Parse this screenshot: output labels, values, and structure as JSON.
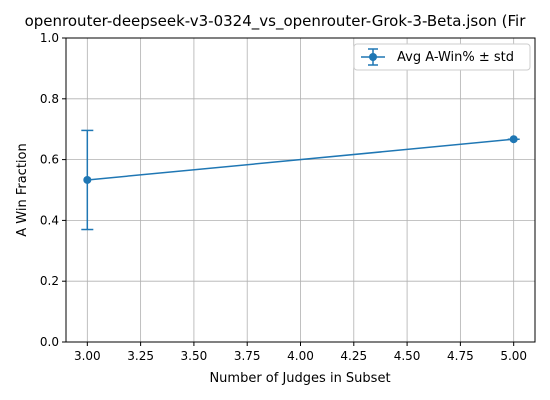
{
  "chart_data": {
    "type": "line",
    "title": "openrouter-deepseek-v3-0324_vs_openrouter-Grok-3-Beta.json (Fir",
    "xlabel": "Number of Judges in Subset",
    "ylabel": "A Win Fraction",
    "xlim": [
      2.9,
      5.1
    ],
    "ylim": [
      0.0,
      1.0
    ],
    "x_ticks": [
      3.0,
      3.25,
      3.5,
      3.75,
      4.0,
      4.25,
      4.5,
      4.75,
      5.0
    ],
    "x_tick_labels": [
      "3.00",
      "3.25",
      "3.50",
      "3.75",
      "4.00",
      "4.25",
      "4.50",
      "4.75",
      "5.00"
    ],
    "y_ticks": [
      0.0,
      0.2,
      0.4,
      0.6,
      0.8,
      1.0
    ],
    "y_tick_labels": [
      "0.0",
      "0.2",
      "0.4",
      "0.6",
      "0.8",
      "1.0"
    ],
    "grid": true,
    "legend_position": "top-right",
    "series": [
      {
        "name": "Avg A-Win% ± std",
        "color": "#1f77b4",
        "x": [
          3.0,
          5.0
        ],
        "y": [
          0.533,
          0.667
        ],
        "std": [
          0.163,
          0.0
        ]
      }
    ]
  }
}
